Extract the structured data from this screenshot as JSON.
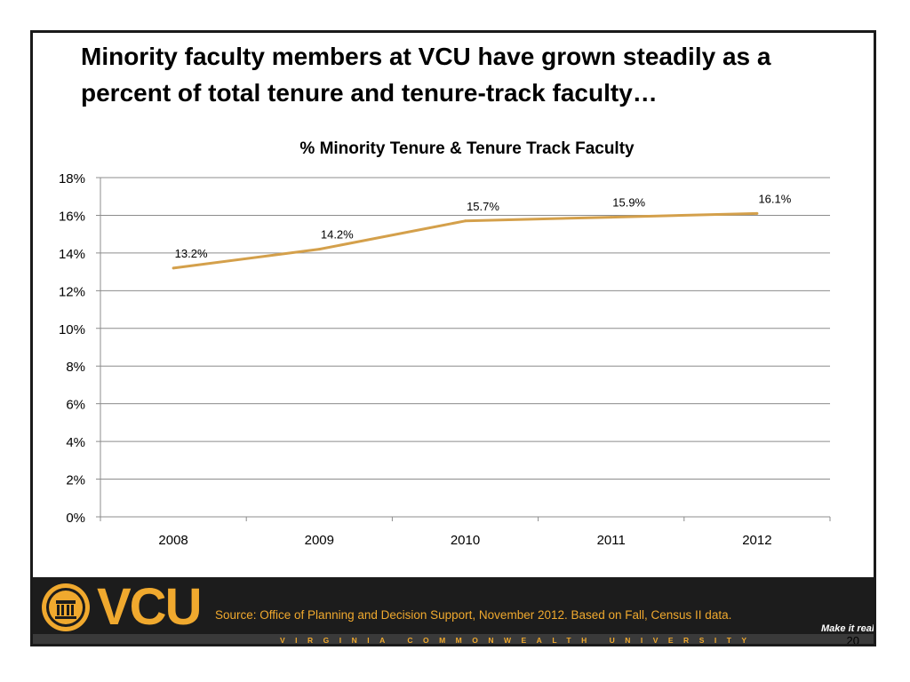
{
  "slide": {
    "title": "Minority faculty members at VCU have grown steadily as a percent of total tenure and tenure-track faculty…",
    "page_number": "20"
  },
  "chart_data": {
    "type": "line",
    "title": "% Minority Tenure & Tenure Track Faculty",
    "categories": [
      "2008",
      "2009",
      "2010",
      "2011",
      "2012"
    ],
    "series": [
      {
        "values": [
          13.2,
          14.2,
          15.7,
          15.9,
          16.1
        ],
        "color": "#d4a04b"
      }
    ],
    "data_labels": [
      "13.2%",
      "14.2%",
      "15.7%",
      "15.9%",
      "16.1%"
    ],
    "ylim": [
      0,
      18
    ],
    "y_ticks": [
      "0%",
      "2%",
      "4%",
      "6%",
      "8%",
      "10%",
      "12%",
      "14%",
      "16%",
      "18%"
    ],
    "grid": true,
    "legend": "none"
  },
  "footer": {
    "logo_text": "VCU",
    "source": "Source: Office of Planning and Decision Support, November 2012. Based on Fall, Census II data.",
    "tagline": "Make it real.",
    "university": "VIRGINIA COMMONWEALTH UNIVERSITY",
    "brand_color": "#f0a92e",
    "band_color": "#1c1c1c"
  }
}
